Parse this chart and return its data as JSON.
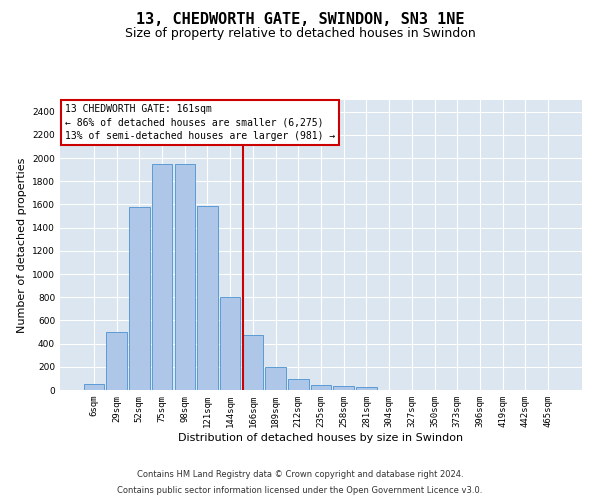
{
  "title1": "13, CHEDWORTH GATE, SWINDON, SN3 1NE",
  "title2": "Size of property relative to detached houses in Swindon",
  "xlabel": "Distribution of detached houses by size in Swindon",
  "ylabel": "Number of detached properties",
  "footer1": "Contains HM Land Registry data © Crown copyright and database right 2024.",
  "footer2": "Contains public sector information licensed under the Open Government Licence v3.0.",
  "bar_labels": [
    "6sqm",
    "29sqm",
    "52sqm",
    "75sqm",
    "98sqm",
    "121sqm",
    "144sqm",
    "166sqm",
    "189sqm",
    "212sqm",
    "235sqm",
    "258sqm",
    "281sqm",
    "304sqm",
    "327sqm",
    "350sqm",
    "373sqm",
    "396sqm",
    "419sqm",
    "442sqm",
    "465sqm"
  ],
  "bar_values": [
    55,
    500,
    1575,
    1950,
    1950,
    1590,
    800,
    475,
    200,
    95,
    45,
    32,
    22,
    0,
    0,
    0,
    0,
    0,
    0,
    0,
    0
  ],
  "bar_color": "#aec6e8",
  "bar_edge_color": "#5b9bd5",
  "vline_color": "#cc0000",
  "vline_index": 7,
  "annotation_title": "13 CHEDWORTH GATE: 161sqm",
  "annotation_line1": "← 86% of detached houses are smaller (6,275)",
  "annotation_line2": "13% of semi-detached houses are larger (981) →",
  "annotation_box_color": "#ffffff",
  "annotation_box_edge": "#cc0000",
  "ylim": [
    0,
    2500
  ],
  "yticks": [
    0,
    200,
    400,
    600,
    800,
    1000,
    1200,
    1400,
    1600,
    1800,
    2000,
    2200,
    2400
  ],
  "background_color": "#dce6f0",
  "grid_color": "#ffffff",
  "title1_fontsize": 11,
  "title2_fontsize": 9,
  "xlabel_fontsize": 8,
  "ylabel_fontsize": 8,
  "footer_fontsize": 6,
  "tick_fontsize": 6.5,
  "annot_fontsize": 7
}
